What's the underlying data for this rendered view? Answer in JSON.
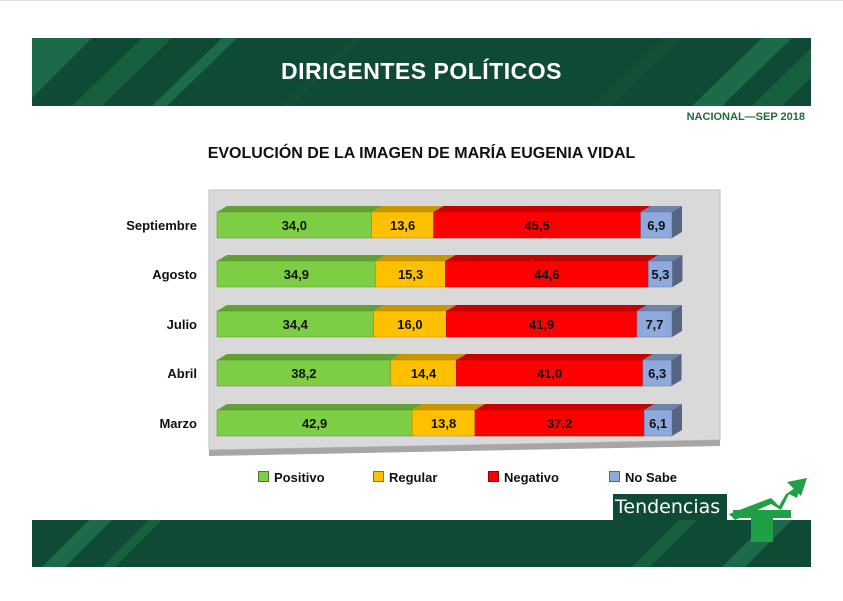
{
  "header": {
    "title": "DIRIGENTES POLÍTICOS",
    "scope": "NACIONAL—SEP 2018"
  },
  "logo": {
    "text": "Tendencias"
  },
  "colors": {
    "banner": "#0f4a34",
    "positivo": "#7dcd45",
    "regular": "#ffc000",
    "negativo": "#ff0000",
    "nosabe": "#8ea9db"
  },
  "chart_data": {
    "type": "bar",
    "orientation": "horizontal",
    "stacked": true,
    "title": "EVOLUCIÓN DE LA IMAGEN DE MARÍA EUGENIA VIDAL",
    "categories": [
      "Septiembre",
      "Agosto",
      "Julio",
      "Abril",
      "Marzo"
    ],
    "series": [
      {
        "name": "Positivo",
        "color": "#7dcd45",
        "values": [
          34.0,
          34.9,
          34.4,
          38.2,
          42.9
        ],
        "labels": [
          "34,0",
          "34,9",
          "34,4",
          "38,2",
          "42,9"
        ]
      },
      {
        "name": "Regular",
        "color": "#ffc000",
        "values": [
          13.6,
          15.3,
          16.0,
          14.4,
          13.8
        ],
        "labels": [
          "13,6",
          "15,3",
          "16,0",
          "14,4",
          "13,8"
        ]
      },
      {
        "name": "Negativo",
        "color": "#ff0000",
        "values": [
          45.5,
          44.6,
          41.9,
          41.0,
          37.2
        ],
        "labels": [
          "45,5",
          "44,6",
          "41,9",
          "41,0",
          "37,2"
        ]
      },
      {
        "name": "No Sabe",
        "color": "#8ea9db",
        "values": [
          6.9,
          5.3,
          7.7,
          6.3,
          6.1
        ],
        "labels": [
          "6,9",
          "5,3",
          "7,7",
          "6,3",
          "6,1"
        ]
      }
    ],
    "xlim": [
      0,
      100
    ],
    "legend_position": "bottom",
    "grid": false
  }
}
